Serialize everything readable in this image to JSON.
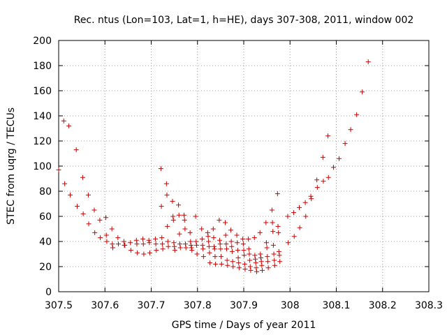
{
  "chart_data": {
    "type": "scatter",
    "title": "Rec. ntus (Lon=103, Lat=1, h=HE), days 307-308, 2011, window 002",
    "xlabel": "GPS time / Days of year 2011",
    "ylabel": "STEC from uqrg / TECUs",
    "xlim": [
      307.5,
      308.3
    ],
    "ylim": [
      0,
      200
    ],
    "xticks": [
      "307.5",
      "307.6",
      "307.7",
      "307.8",
      "307.9",
      "308",
      "308.1",
      "308.2",
      "308.3"
    ],
    "yticks": [
      "0",
      "20",
      "40",
      "60",
      "80",
      "100",
      "120",
      "140",
      "160",
      "180",
      "200"
    ],
    "grid": true,
    "marker": "+",
    "color": "#cc0000",
    "points": [
      [
        307.5,
        97
      ],
      [
        307.511,
        136
      ],
      [
        307.513,
        86
      ],
      [
        307.522,
        132
      ],
      [
        307.525,
        77
      ],
      [
        307.538,
        113
      ],
      [
        307.54,
        68
      ],
      [
        307.552,
        91
      ],
      [
        307.553,
        62
      ],
      [
        307.564,
        77
      ],
      [
        307.565,
        54
      ],
      [
        307.577,
        65
      ],
      [
        307.578,
        47
      ],
      [
        307.589,
        57
      ],
      [
        307.59,
        43
      ],
      [
        307.602,
        59
      ],
      [
        307.603,
        45
      ],
      [
        307.604,
        40
      ],
      [
        307.615,
        50
      ],
      [
        307.616,
        38
      ],
      [
        307.617,
        35
      ],
      [
        307.628,
        43
      ],
      [
        307.629,
        38
      ],
      [
        307.641,
        40
      ],
      [
        307.642,
        37
      ],
      [
        307.643,
        37
      ],
      [
        307.655,
        39
      ],
      [
        307.656,
        33
      ],
      [
        307.668,
        41
      ],
      [
        307.669,
        38
      ],
      [
        307.67,
        31
      ],
      [
        307.682,
        42
      ],
      [
        307.683,
        38
      ],
      [
        307.684,
        30
      ],
      [
        307.695,
        41
      ],
      [
        307.696,
        39
      ],
      [
        307.697,
        31
      ],
      [
        307.709,
        42
      ],
      [
        307.71,
        38
      ],
      [
        307.711,
        33
      ],
      [
        307.721,
        98
      ],
      [
        307.722,
        68
      ],
      [
        307.723,
        43
      ],
      [
        307.724,
        38
      ],
      [
        307.725,
        34
      ],
      [
        307.733,
        86
      ],
      [
        307.734,
        77
      ],
      [
        307.735,
        52
      ],
      [
        307.736,
        40
      ],
      [
        307.737,
        36
      ],
      [
        307.746,
        72
      ],
      [
        307.747,
        60
      ],
      [
        307.748,
        57
      ],
      [
        307.749,
        39
      ],
      [
        307.75,
        36
      ],
      [
        307.751,
        33
      ],
      [
        307.759,
        69
      ],
      [
        307.76,
        61
      ],
      [
        307.761,
        46
      ],
      [
        307.762,
        38
      ],
      [
        307.763,
        35
      ],
      [
        307.771,
        61
      ],
      [
        307.772,
        57
      ],
      [
        307.773,
        50
      ],
      [
        307.774,
        38
      ],
      [
        307.775,
        35
      ],
      [
        307.784,
        47
      ],
      [
        307.785,
        40
      ],
      [
        307.786,
        37
      ],
      [
        307.787,
        35
      ],
      [
        307.788,
        33
      ],
      [
        307.796,
        60
      ],
      [
        307.797,
        40
      ],
      [
        307.798,
        37
      ],
      [
        307.799,
        30
      ],
      [
        307.809,
        50
      ],
      [
        307.81,
        42
      ],
      [
        307.811,
        37
      ],
      [
        307.812,
        34
      ],
      [
        307.813,
        28
      ],
      [
        307.822,
        47
      ],
      [
        307.823,
        44
      ],
      [
        307.824,
        40
      ],
      [
        307.825,
        36
      ],
      [
        307.826,
        31
      ],
      [
        307.827,
        23
      ],
      [
        307.834,
        50
      ],
      [
        307.835,
        43
      ],
      [
        307.836,
        36
      ],
      [
        307.837,
        34
      ],
      [
        307.838,
        28
      ],
      [
        307.839,
        22
      ],
      [
        307.847,
        57
      ],
      [
        307.848,
        41
      ],
      [
        307.849,
        38
      ],
      [
        307.85,
        34
      ],
      [
        307.851,
        28
      ],
      [
        307.852,
        22
      ],
      [
        307.86,
        55
      ],
      [
        307.861,
        45
      ],
      [
        307.862,
        38
      ],
      [
        307.863,
        34
      ],
      [
        307.864,
        25
      ],
      [
        307.865,
        21
      ],
      [
        307.872,
        49
      ],
      [
        307.873,
        40
      ],
      [
        307.874,
        36
      ],
      [
        307.875,
        32
      ],
      [
        307.876,
        24
      ],
      [
        307.877,
        20
      ],
      [
        307.885,
        45
      ],
      [
        307.886,
        39
      ],
      [
        307.887,
        33
      ],
      [
        307.888,
        27
      ],
      [
        307.889,
        23
      ],
      [
        307.89,
        19
      ],
      [
        307.898,
        42
      ],
      [
        307.899,
        38
      ],
      [
        307.9,
        33
      ],
      [
        307.901,
        29
      ],
      [
        307.902,
        22
      ],
      [
        307.903,
        18
      ],
      [
        307.91,
        42
      ],
      [
        307.911,
        34
      ],
      [
        307.912,
        30
      ],
      [
        307.913,
        25
      ],
      [
        307.914,
        20
      ],
      [
        307.915,
        17
      ],
      [
        307.923,
        43
      ],
      [
        307.924,
        29
      ],
      [
        307.925,
        26
      ],
      [
        307.926,
        23
      ],
      [
        307.927,
        19
      ],
      [
        307.928,
        16
      ],
      [
        307.935,
        47
      ],
      [
        307.936,
        30
      ],
      [
        307.937,
        27
      ],
      [
        307.938,
        24
      ],
      [
        307.939,
        21
      ],
      [
        307.94,
        17
      ],
      [
        307.948,
        55
      ],
      [
        307.949,
        39
      ],
      [
        307.95,
        35
      ],
      [
        307.951,
        28
      ],
      [
        307.952,
        24
      ],
      [
        307.953,
        19
      ],
      [
        307.961,
        65
      ],
      [
        307.962,
        55
      ],
      [
        307.963,
        48
      ],
      [
        307.964,
        37
      ],
      [
        307.965,
        30
      ],
      [
        307.966,
        25
      ],
      [
        307.967,
        21
      ],
      [
        307.973,
        78
      ],
      [
        307.974,
        52
      ],
      [
        307.975,
        47
      ],
      [
        307.976,
        32
      ],
      [
        307.977,
        29
      ],
      [
        307.978,
        24
      ],
      [
        307.995,
        60
      ],
      [
        307.996,
        39
      ],
      [
        308.008,
        63
      ],
      [
        308.009,
        44
      ],
      [
        308.02,
        67
      ],
      [
        308.021,
        51
      ],
      [
        308.033,
        71
      ],
      [
        308.034,
        60
      ],
      [
        308.045,
        76
      ],
      [
        308.046,
        74
      ],
      [
        308.058,
        89
      ],
      [
        308.059,
        83
      ],
      [
        308.071,
        107
      ],
      [
        308.072,
        88
      ],
      [
        308.082,
        124
      ],
      [
        308.083,
        91
      ],
      [
        308.094,
        99
      ],
      [
        308.106,
        106
      ],
      [
        308.119,
        118
      ],
      [
        308.131,
        129
      ],
      [
        308.144,
        141
      ],
      [
        308.156,
        159
      ],
      [
        308.169,
        183
      ]
    ]
  }
}
